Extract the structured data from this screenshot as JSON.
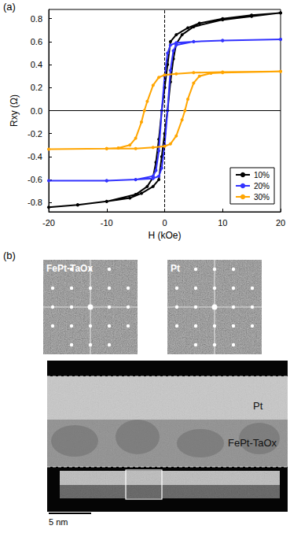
{
  "chart_data": {
    "type": "line",
    "panel_label": "(a)",
    "x_label": "H (kOe)",
    "y_label": "Rxy (Ω)",
    "xlim": [
      -20,
      20
    ],
    "xticks": [
      -20,
      -10,
      0,
      10,
      20
    ],
    "ylim": [
      -0.88,
      0.88
    ],
    "yticks": [
      -0.8,
      -0.6,
      -0.4,
      -0.2,
      {
        "value": 0,
        "label": "0.0"
      },
      0.2,
      0.4,
      0.6,
      0.8
    ],
    "grid": false,
    "legend": "bottom-right",
    "marker": "circle",
    "reference_lines": [
      {
        "axis": "x",
        "value": 0,
        "line_style": "dashed"
      },
      {
        "axis": "y",
        "value": 0,
        "line_style": "solid"
      }
    ],
    "series": [
      {
        "name": "10%",
        "color": "#000000",
        "x": [
          20,
          15,
          10,
          6,
          4,
          2,
          1,
          0.5,
          0,
          -0.5,
          -1,
          -1.5,
          -2,
          -3,
          -5,
          -10,
          -15,
          -20,
          -15,
          -10,
          -6,
          -4,
          -2,
          -1,
          -0.5,
          0,
          0.5,
          1,
          1.5,
          2,
          3,
          5,
          10,
          15,
          20
        ],
        "values": [
          0.85,
          0.83,
          0.8,
          0.76,
          0.72,
          0.66,
          0.6,
          0.4,
          0.2,
          0,
          -0.25,
          -0.45,
          -0.58,
          -0.66,
          -0.73,
          -0.79,
          -0.82,
          -0.84,
          -0.82,
          -0.79,
          -0.76,
          -0.72,
          -0.66,
          -0.6,
          -0.4,
          -0.2,
          0,
          0.25,
          0.45,
          0.58,
          0.66,
          0.73,
          0.79,
          0.82,
          0.85
        ]
      },
      {
        "name": "20%",
        "color": "#3333ff",
        "x": [
          20,
          10,
          5,
          2,
          1,
          0.5,
          0,
          -0.5,
          -1,
          -1.5,
          -2,
          -5,
          -10,
          -20,
          -10,
          -5,
          -2,
          -1,
          -0.5,
          0,
          0.5,
          1,
          1.5,
          2,
          5,
          10,
          20
        ],
        "values": [
          0.62,
          0.61,
          0.6,
          0.59,
          0.57,
          0.5,
          0.3,
          0,
          -0.35,
          -0.52,
          -0.57,
          -0.6,
          -0.61,
          -0.61,
          -0.61,
          -0.6,
          -0.59,
          -0.57,
          -0.5,
          -0.3,
          0,
          0.35,
          0.52,
          0.57,
          0.6,
          0.61,
          0.62
        ]
      },
      {
        "name": "30%",
        "color": "#ffa500",
        "x": [
          20,
          10,
          5,
          2,
          0,
          -1,
          -2,
          -3,
          -3.5,
          -4,
          -5,
          -6,
          -8,
          -10,
          -20,
          -10,
          -5,
          -2,
          0,
          1,
          2,
          3,
          3.5,
          4,
          5,
          6,
          8,
          10,
          20
        ],
        "values": [
          0.34,
          0.335,
          0.33,
          0.32,
          0.31,
          0.29,
          0.22,
          0.08,
          0,
          -0.1,
          -0.24,
          -0.3,
          -0.325,
          -0.33,
          -0.335,
          -0.33,
          -0.33,
          -0.32,
          -0.31,
          -0.29,
          -0.22,
          -0.08,
          0,
          0.1,
          0.24,
          0.3,
          0.325,
          0.33,
          0.34
        ]
      }
    ]
  },
  "figure": {
    "panel_b": {
      "label": "(b)",
      "fft_labels": [
        "FePt-TaOx",
        "Pt"
      ],
      "layer_labels": [
        "Pt",
        "FePt-TaOx"
      ],
      "scale_bar": "5 nm"
    }
  }
}
